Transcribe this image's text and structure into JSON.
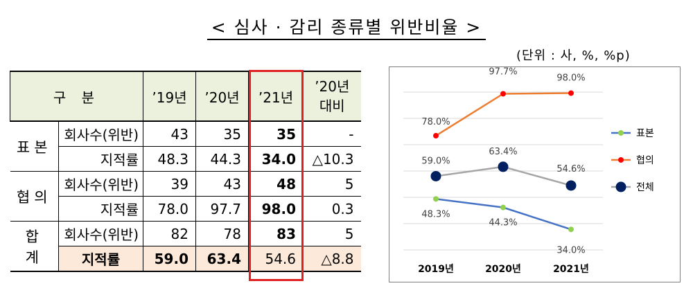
{
  "title": "< 심사 · 감리 종류별 위반비율 >",
  "unit": "(단위 : 사, %, %p)",
  "table": {
    "headers": [
      "구 분",
      "’19년",
      "’20년",
      "’21년",
      "’20년\n대비"
    ],
    "groups": [
      {
        "label": "표본",
        "rows": [
          {
            "label": "회사수(위반)",
            "values": [
              "43",
              "35",
              "35",
              "-"
            ]
          },
          {
            "label": "지적률",
            "values": [
              "48.3",
              "44.3",
              "34.0",
              "△10.3"
            ]
          }
        ]
      },
      {
        "label": "협의",
        "rows": [
          {
            "label": "회사수(위반)",
            "values": [
              "39",
              "43",
              "48",
              "5"
            ]
          },
          {
            "label": "지적률",
            "values": [
              "78.0",
              "97.7",
              "98.0",
              "0.3"
            ]
          }
        ]
      },
      {
        "label": "합 계",
        "rows": [
          {
            "label": "회사수(위반)",
            "values": [
              "82",
              "78",
              "83",
              "5"
            ]
          },
          {
            "label": "지적률",
            "values": [
              "59.0",
              "63.4",
              "54.6",
              "△8.8"
            ]
          }
        ]
      }
    ]
  },
  "chart_data": {
    "type": "line",
    "categories": [
      "2019년",
      "2020년",
      "2021년"
    ],
    "series": [
      {
        "name": "표본",
        "values": [
          48.3,
          44.3,
          34.0
        ],
        "labels": [
          "48.3%",
          "44.3%",
          "34.0%"
        ],
        "color": "#4472c4",
        "marker_color": "#92d050"
      },
      {
        "name": "협의",
        "values": [
          78.0,
          97.7,
          98.0
        ],
        "labels": [
          "78.0%",
          "97.7%",
          "98.0%"
        ],
        "color": "#ed7d31",
        "marker_color": "#ff0000"
      },
      {
        "name": "전체",
        "values": [
          59.0,
          63.4,
          54.6
        ],
        "labels": [
          "59.0%",
          "63.4%",
          "54.6%"
        ],
        "color": "#a5a5a5",
        "marker_color": "#002060"
      }
    ],
    "ylim": [
      25,
      105
    ],
    "grid": true,
    "legend": "right"
  }
}
